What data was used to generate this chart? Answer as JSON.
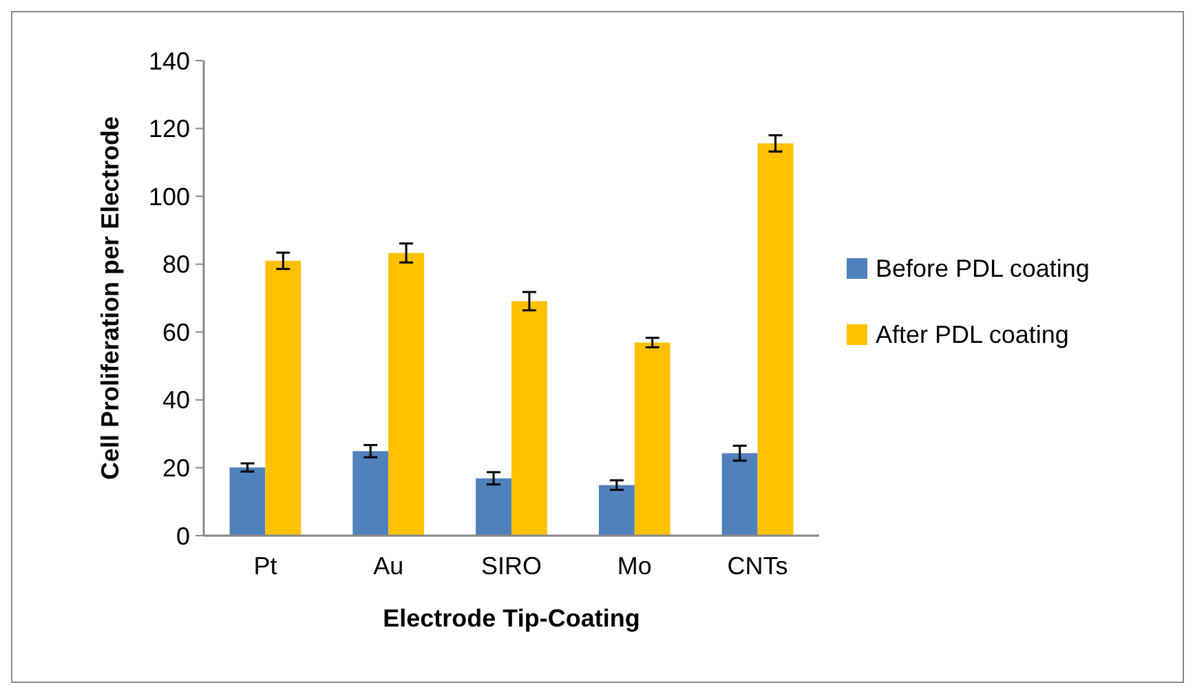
{
  "chart_data": {
    "type": "bar",
    "xlabel": "Electrode Tip-Coating",
    "ylabel": "Cell Proliferation per Electrode",
    "categories": [
      "Pt",
      "Au",
      "SIRO",
      "Mo",
      "CNTs"
    ],
    "series": [
      {
        "name": "Before PDL coating",
        "color": "#4f81bd",
        "values": [
          20.1,
          24.9,
          16.9,
          14.9,
          24.3
        ],
        "errors": [
          1.2,
          1.8,
          1.8,
          1.4,
          2.2
        ]
      },
      {
        "name": "After PDL coating",
        "color": "#ffc000",
        "values": [
          81,
          83.3,
          69.1,
          56.9,
          115.6
        ],
        "errors": [
          2.4,
          2.8,
          2.7,
          1.4,
          2.4
        ]
      }
    ],
    "ylim": [
      0,
      140
    ],
    "yticks": [
      0,
      20,
      40,
      60,
      80,
      100,
      120,
      140
    ],
    "grid": false,
    "legend": "right"
  }
}
